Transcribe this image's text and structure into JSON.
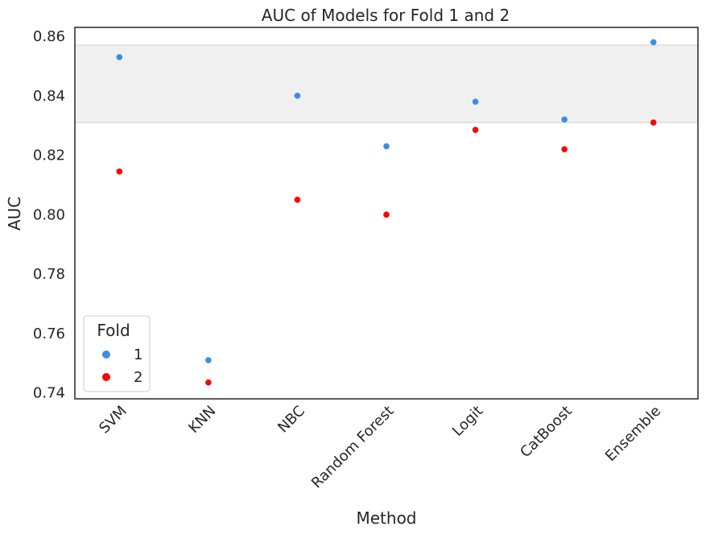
{
  "chart_data": {
    "type": "scatter",
    "title": "AUC of Models for Fold 1 and 2",
    "xlabel": "Method",
    "ylabel": "AUC",
    "categories": [
      "SVM",
      "KNN",
      "NBC",
      "Random Forest",
      "Logit",
      "CatBoost",
      "Ensemble"
    ],
    "ylim": [
      0.738,
      0.863
    ],
    "yticks": [
      0.74,
      0.76,
      0.78,
      0.8,
      0.82,
      0.84,
      0.86
    ],
    "ytick_labels": [
      "0.74",
      "0.76",
      "0.78",
      "0.80",
      "0.82",
      "0.84",
      "0.86"
    ],
    "grid": false,
    "highlight_band": {
      "y_min": 0.831,
      "y_max": 0.857,
      "color": "#f0f0f0"
    },
    "legend": {
      "title": "Fold",
      "placement": "lower-left"
    },
    "series": [
      {
        "name": "1",
        "color": "#3c8ee0",
        "values": [
          0.853,
          0.751,
          0.84,
          0.823,
          0.838,
          0.832,
          0.858
        ]
      },
      {
        "name": "2",
        "color": "#ff0000",
        "values": [
          0.8145,
          0.7435,
          0.805,
          0.8,
          0.8285,
          0.822,
          0.831
        ]
      }
    ]
  }
}
